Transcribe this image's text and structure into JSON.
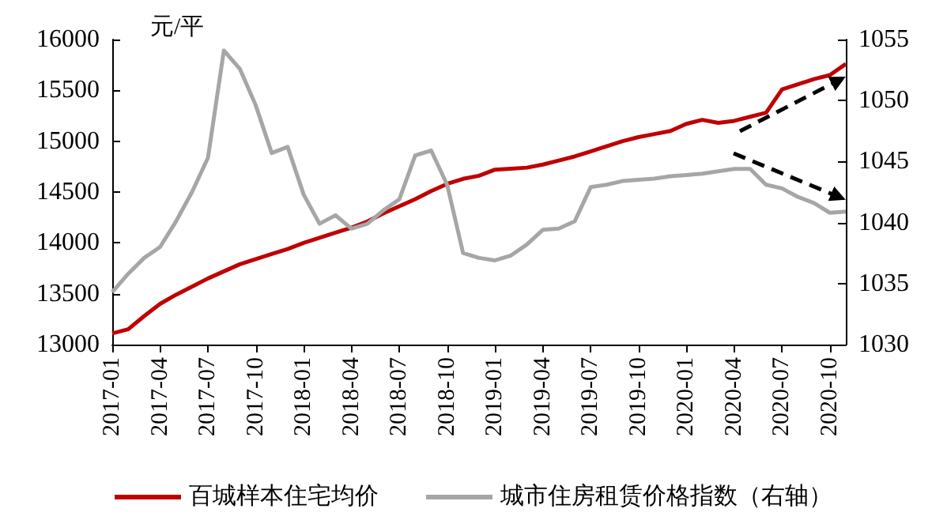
{
  "chart_data": {
    "type": "line",
    "ylabel": "元/平",
    "categories": [
      "2017-01",
      null,
      null,
      "2017-04",
      null,
      null,
      "2017-07",
      null,
      null,
      "2017-10",
      null,
      null,
      "2018-01",
      null,
      null,
      "2018-04",
      null,
      null,
      "2018-07",
      null,
      null,
      "2018-10",
      null,
      null,
      "2019-01",
      null,
      null,
      "2019-04",
      null,
      null,
      "2019-07",
      null,
      null,
      "2019-10",
      null,
      null,
      "2020-01",
      null,
      null,
      "2020-04",
      null,
      null,
      "2020-07",
      null,
      null,
      "2020-10",
      null
    ],
    "series": [
      {
        "name": "百城样本住宅均价",
        "color": "#c00000",
        "values": [
          13110,
          13150,
          13280,
          13400,
          13490,
          13570,
          13650,
          13720,
          13790,
          13840,
          13890,
          13940,
          14000,
          14050,
          14100,
          14150,
          14210,
          14290,
          14360,
          14430,
          14510,
          14580,
          14630,
          14660,
          14720,
          14730,
          14740,
          14770,
          14810,
          14850,
          14900,
          14950,
          15000,
          15040,
          15070,
          15100,
          15170,
          15210,
          15180,
          15200,
          15240,
          15280,
          15510,
          15560,
          15610,
          15650,
          15760
        ]
      },
      {
        "name": "城市住房租赁价格指数（右轴）",
        "color": "#a6a6a6",
        "axis": "y2",
        "values": [
          1034.3,
          1035.8,
          1037.1,
          1038.0,
          1040.1,
          1042.5,
          1045.3,
          1054.1,
          1052.6,
          1049.6,
          1045.7,
          1046.2,
          1042.3,
          1039.9,
          1040.6,
          1039.5,
          1039.9,
          1041.0,
          1041.9,
          1045.5,
          1045.9,
          1043.1,
          1037.5,
          1037.1,
          1036.9,
          1037.3,
          1038.2,
          1039.4,
          1039.5,
          1040.1,
          1042.9,
          1043.1,
          1043.4,
          1043.5,
          1043.6,
          1043.8,
          1043.9,
          1044.0,
          1044.2,
          1044.4,
          1044.4,
          1043.1,
          1042.8,
          1042.1,
          1041.6,
          1040.8,
          1040.9
        ]
      }
    ],
    "ylim": [
      13000,
      16000
    ],
    "yticks": [
      13000,
      13500,
      14000,
      14500,
      15000,
      15500,
      16000
    ],
    "y2lim": [
      1030,
      1055
    ],
    "y2ticks": [
      1030,
      1035,
      1040,
      1045,
      1050,
      1055
    ],
    "legend": "bottom",
    "grid": false,
    "marker": "none",
    "line_style": "solid"
  }
}
